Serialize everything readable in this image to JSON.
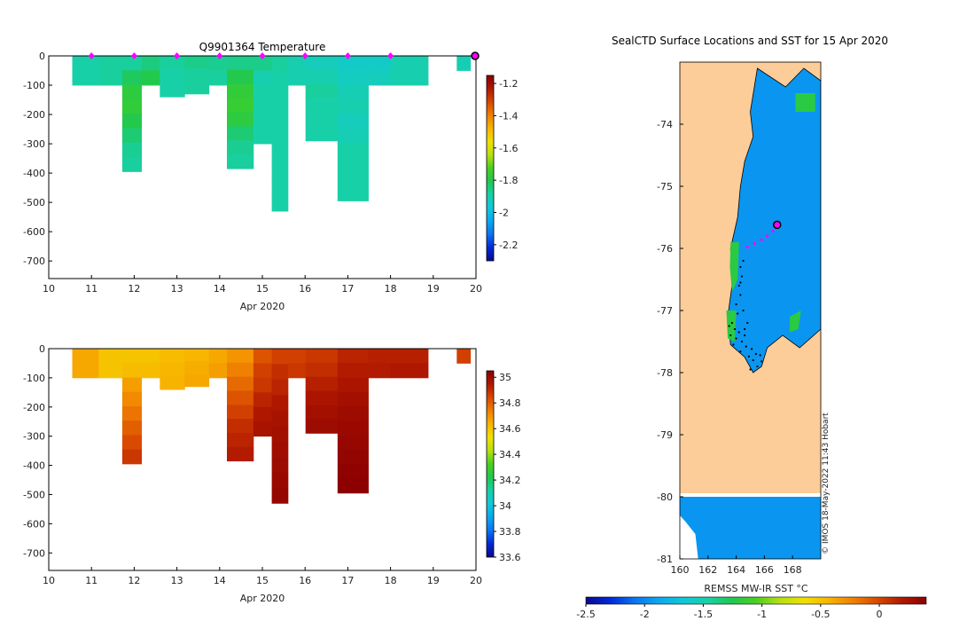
{
  "chart_data": [
    {
      "type": "heatmap",
      "title": "Q9901364  Temperature",
      "xlabel": "Apr 2020",
      "xlim": [
        10,
        20
      ],
      "ylim": [
        -760,
        0
      ],
      "x_ticks": [
        "10",
        "11",
        "12",
        "13",
        "14",
        "15",
        "16",
        "17",
        "18",
        "19",
        "20"
      ],
      "y_ticks": [
        "0",
        "-100",
        "-200",
        "-300",
        "-400",
        "-500",
        "-600",
        "-700"
      ],
      "colorbar": {
        "range": [
          -2.3,
          -1.15
        ],
        "ticks": [
          "-1.2",
          "-1.4",
          "-1.6",
          "-1.8",
          "-2",
          "-2.2"
        ]
      },
      "profile_markers": [
        11,
        12,
        13,
        14,
        15,
        16,
        17,
        18
      ],
      "current_marker": 20,
      "profiles": [
        {
          "x": 10.55,
          "w": 0.62,
          "depth": 100,
          "values": [
            -1.89
          ]
        },
        {
          "x": 11.17,
          "w": 0.55,
          "depth": 100,
          "values": [
            -1.88
          ]
        },
        {
          "x": 11.72,
          "w": 0.45,
          "depth": 395,
          "values": [
            -1.88,
            -1.82,
            -1.78,
            -1.77,
            -1.8,
            -1.84,
            -1.87,
            -1.88
          ]
        },
        {
          "x": 12.17,
          "w": 0.43,
          "depth": 100,
          "values": [
            -1.85,
            -1.8
          ]
        },
        {
          "x": 12.6,
          "w": 0.58,
          "depth": 140,
          "values": [
            -1.88,
            -1.89,
            -1.89
          ]
        },
        {
          "x": 13.18,
          "w": 0.57,
          "depth": 130,
          "values": [
            -1.86,
            -1.88,
            -1.88
          ]
        },
        {
          "x": 13.75,
          "w": 0.42,
          "depth": 100,
          "values": [
            -1.87,
            -1.88
          ]
        },
        {
          "x": 14.17,
          "w": 0.62,
          "depth": 385,
          "values": [
            -1.86,
            -1.8,
            -1.77,
            -1.76,
            -1.78,
            -1.84,
            -1.87,
            -1.88
          ]
        },
        {
          "x": 14.79,
          "w": 0.43,
          "depth": 300,
          "values": [
            -1.86,
            -1.9,
            -1.89,
            -1.89,
            -1.89,
            -1.89
          ]
        },
        {
          "x": 15.22,
          "w": 0.38,
          "depth": 530,
          "values": [
            -1.88,
            -1.89,
            -1.89,
            -1.89,
            -1.89,
            -1.89,
            -1.89,
            -1.89,
            -1.89,
            -1.89
          ]
        },
        {
          "x": 15.6,
          "w": 0.41,
          "depth": 100,
          "values": [
            -1.9,
            -1.9
          ]
        },
        {
          "x": 16.01,
          "w": 0.75,
          "depth": 290,
          "values": [
            -1.92,
            -1.9,
            -1.88,
            -1.89,
            -1.89,
            -1.89
          ]
        },
        {
          "x": 16.76,
          "w": 0.72,
          "depth": 495,
          "values": [
            -1.94,
            -1.93,
            -1.91,
            -1.9,
            -1.92,
            -1.91,
            -1.89,
            -1.89,
            -1.89,
            -1.89
          ]
        },
        {
          "x": 17.48,
          "w": 0.52,
          "depth": 100,
          "values": [
            -1.94,
            -1.92
          ]
        },
        {
          "x": 18.0,
          "w": 0.88,
          "depth": 100,
          "values": [
            -1.9,
            -1.9
          ]
        },
        {
          "x": 19.55,
          "w": 0.32,
          "depth": 50,
          "values": [
            -1.91
          ]
        }
      ]
    },
    {
      "type": "heatmap",
      "title": "",
      "xlabel": "Apr 2020",
      "xlim": [
        10,
        20
      ],
      "ylim": [
        -760,
        0
      ],
      "x_ticks": [
        "10",
        "11",
        "12",
        "13",
        "14",
        "15",
        "16",
        "17",
        "18",
        "19",
        "20"
      ],
      "y_ticks": [
        "0",
        "-100",
        "-200",
        "-300",
        "-400",
        "-500",
        "-600",
        "-700"
      ],
      "colorbar": {
        "range": [
          33.6,
          35.05
        ],
        "ticks": [
          "35",
          "34.8",
          "34.6",
          "34.4",
          "34.2",
          "34",
          "33.8",
          "33.6"
        ]
      },
      "profiles": [
        {
          "x": 10.55,
          "w": 0.62,
          "depth": 100,
          "values": [
            34.66
          ]
        },
        {
          "x": 11.17,
          "w": 0.55,
          "depth": 100,
          "values": [
            34.6
          ]
        },
        {
          "x": 11.72,
          "w": 0.45,
          "depth": 395,
          "values": [
            34.6,
            34.62,
            34.68,
            34.72,
            34.76,
            34.8,
            34.84,
            34.88
          ]
        },
        {
          "x": 12.17,
          "w": 0.43,
          "depth": 100,
          "values": [
            34.6,
            34.62
          ]
        },
        {
          "x": 12.6,
          "w": 0.58,
          "depth": 140,
          "values": [
            34.62,
            34.63,
            34.64
          ]
        },
        {
          "x": 13.18,
          "w": 0.57,
          "depth": 130,
          "values": [
            34.63,
            34.65,
            34.66
          ]
        },
        {
          "x": 13.75,
          "w": 0.42,
          "depth": 100,
          "values": [
            34.66,
            34.68
          ]
        },
        {
          "x": 14.17,
          "w": 0.62,
          "depth": 385,
          "values": [
            34.7,
            34.74,
            34.78,
            34.82,
            34.86,
            34.9,
            34.92,
            34.94
          ]
        },
        {
          "x": 14.79,
          "w": 0.43,
          "depth": 300,
          "values": [
            34.82,
            34.86,
            34.88,
            34.92,
            34.95,
            34.97
          ]
        },
        {
          "x": 15.22,
          "w": 0.38,
          "depth": 530,
          "values": [
            34.86,
            34.9,
            34.92,
            34.95,
            34.97,
            34.98,
            34.99,
            35.0,
            35.01,
            35.02
          ]
        },
        {
          "x": 15.6,
          "w": 0.41,
          "depth": 100,
          "values": [
            34.86,
            34.88
          ]
        },
        {
          "x": 16.01,
          "w": 0.75,
          "depth": 290,
          "values": [
            34.88,
            34.9,
            34.93,
            34.96,
            34.98,
            35.0
          ]
        },
        {
          "x": 16.76,
          "w": 0.72,
          "depth": 495,
          "values": [
            34.92,
            34.94,
            34.96,
            34.98,
            35.0,
            35.01,
            35.02,
            35.03,
            35.04,
            35.05
          ]
        },
        {
          "x": 17.48,
          "w": 0.52,
          "depth": 100,
          "values": [
            34.93,
            34.94
          ]
        },
        {
          "x": 18.0,
          "w": 0.88,
          "depth": 100,
          "values": [
            34.93,
            34.95
          ]
        },
        {
          "x": 19.55,
          "w": 0.32,
          "depth": 50,
          "values": [
            34.86
          ]
        }
      ]
    },
    {
      "type": "map",
      "title": "SealCTD Surface Locations and SST for 15 Apr 2020",
      "lon_range": [
        160,
        170
      ],
      "lat_range": [
        -81,
        -73
      ],
      "lon_ticks": [
        "160",
        "162",
        "164",
        "166",
        "168"
      ],
      "lat_ticks": [
        "-74",
        "-75",
        "-76",
        "-77",
        "-78",
        "-79",
        "-80",
        "-81"
      ],
      "colorbar": {
        "label": "REMSS MW-IR SST °C",
        "range": [
          -2.5,
          0.4
        ],
        "ticks": [
          "-2.5",
          "-2",
          "-1.5",
          "-1",
          "-0.5",
          "0"
        ]
      },
      "credit": "© IMOS 18-May-2022 11:43 Hobart",
      "current_position": {
        "lon": 166.9,
        "lat": -75.62
      },
      "recent_track": [
        {
          "lon": 166.6,
          "lat": -75.72
        },
        {
          "lon": 166.2,
          "lat": -75.8
        },
        {
          "lon": 165.8,
          "lat": -75.86
        },
        {
          "lon": 165.3,
          "lat": -75.92
        },
        {
          "lon": 164.8,
          "lat": -75.98
        }
      ],
      "history_points": [
        {
          "lon": 164.5,
          "lat": -76.2
        },
        {
          "lon": 164.3,
          "lat": -76.3
        },
        {
          "lon": 164.4,
          "lat": -76.45
        },
        {
          "lon": 164.2,
          "lat": -76.6
        },
        {
          "lon": 164.3,
          "lat": -76.75
        },
        {
          "lon": 164.0,
          "lat": -76.9
        },
        {
          "lon": 164.1,
          "lat": -77.05
        },
        {
          "lon": 163.7,
          "lat": -77.2
        },
        {
          "lon": 163.9,
          "lat": -77.3
        },
        {
          "lon": 164.2,
          "lat": -77.35
        },
        {
          "lon": 163.6,
          "lat": -77.4
        },
        {
          "lon": 164.0,
          "lat": -77.45
        },
        {
          "lon": 164.4,
          "lat": -77.5
        },
        {
          "lon": 163.8,
          "lat": -77.55
        },
        {
          "lon": 164.7,
          "lat": -77.58
        },
        {
          "lon": 165.1,
          "lat": -77.62
        },
        {
          "lon": 164.3,
          "lat": -77.66
        },
        {
          "lon": 165.4,
          "lat": -77.7
        },
        {
          "lon": 164.9,
          "lat": -77.74
        },
        {
          "lon": 165.7,
          "lat": -77.72
        },
        {
          "lon": 165.2,
          "lat": -77.8
        },
        {
          "lon": 165.8,
          "lat": -77.82
        },
        {
          "lon": 165.5,
          "lat": -77.9
        },
        {
          "lon": 165.0,
          "lat": -77.95
        },
        {
          "lon": 164.6,
          "lat": -77.4
        },
        {
          "lon": 163.5,
          "lat": -77.25
        },
        {
          "lon": 164.8,
          "lat": -77.2
        },
        {
          "lon": 164.5,
          "lat": -77.0
        },
        {
          "lon": 164.3,
          "lat": -76.55
        },
        {
          "lon": 164.6,
          "lat": -77.3
        }
      ],
      "sst_regions": [
        {
          "value": -1.95,
          "polygon": [
            [
              165.5,
              -73.1
            ],
            [
              167.5,
              -73.4
            ],
            [
              168.8,
              -73.1
            ],
            [
              170,
              -73.3
            ],
            [
              170,
              -77.3
            ],
            [
              168.5,
              -77.6
            ],
            [
              167.3,
              -77.4
            ],
            [
              166.2,
              -77.6
            ],
            [
              165.8,
              -77.9
            ],
            [
              165.2,
              -78.0
            ],
            [
              164.6,
              -77.75
            ],
            [
              163.6,
              -77.55
            ],
            [
              163.4,
              -77.1
            ],
            [
              163.7,
              -76.6
            ],
            [
              163.6,
              -76.0
            ],
            [
              164.1,
              -75.5
            ],
            [
              164.3,
              -75.0
            ],
            [
              164.6,
              -74.6
            ],
            [
              165.2,
              -74.2
            ],
            [
              165.0,
              -73.8
            ]
          ]
        },
        {
          "value": -1.2,
          "polygon": [
            [
              163.6,
              -75.9
            ],
            [
              164.2,
              -75.9
            ],
            [
              164.1,
              -76.5
            ],
            [
              163.7,
              -76.7
            ],
            [
              163.55,
              -76.3
            ]
          ]
        },
        {
          "value": -1.2,
          "polygon": [
            [
              163.3,
              -77.0
            ],
            [
              164.0,
              -77.0
            ],
            [
              163.9,
              -77.5
            ],
            [
              163.4,
              -77.45
            ]
          ]
        },
        {
          "value": -1.2,
          "polygon": [
            [
              167.8,
              -77.1
            ],
            [
              168.6,
              -77.0
            ],
            [
              168.4,
              -77.3
            ],
            [
              167.8,
              -77.35
            ]
          ]
        },
        {
          "value": -1.2,
          "polygon": [
            [
              168.2,
              -73.5
            ],
            [
              169.6,
              -73.5
            ],
            [
              169.6,
              -73.8
            ],
            [
              168.2,
              -73.8
            ]
          ]
        },
        {
          "value": -1.95,
          "polygon": [
            [
              160,
              -80.0
            ],
            [
              170,
              -80.0
            ],
            [
              170,
              -81.0
            ],
            [
              161.3,
              -81.0
            ],
            [
              161.1,
              -80.6
            ],
            [
              160.4,
              -80.4
            ],
            [
              160,
              -80.3
            ]
          ]
        }
      ]
    }
  ]
}
